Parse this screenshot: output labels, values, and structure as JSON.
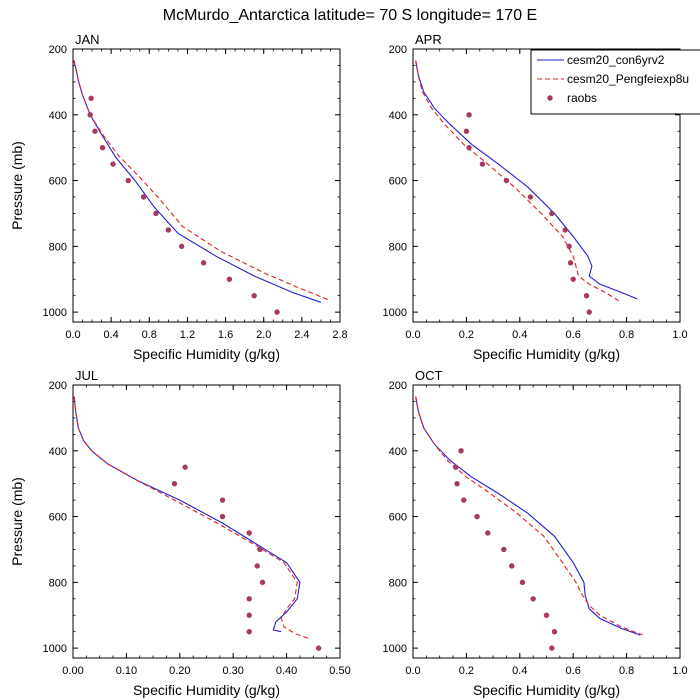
{
  "page_title": "McMurdo_Antarctica  latitude= 70 S longitude= 170 E",
  "legend": {
    "entries": [
      {
        "label": "cesm20_con6yrv2",
        "color": "#1f1fd6",
        "style": "solid"
      },
      {
        "label": "cesm20_Pengfeiexp8u",
        "color": "#e02020",
        "style": "dashed"
      },
      {
        "label": "raobs",
        "color": "#a83a62",
        "style": "marker"
      }
    ]
  },
  "chart_data": [
    {
      "type": "line",
      "title": "JAN",
      "xlabel": "Specific Humidity (g/kg)",
      "ylabel": "Pressure (mb)",
      "xlim": [
        0,
        2.8
      ],
      "ylim": [
        1030,
        200
      ],
      "xticks": [
        "0.0",
        "0.4",
        "0.8",
        "1.2",
        "1.6",
        "2.0",
        "2.4",
        "2.8"
      ],
      "yticks": [
        "200",
        "400",
        "600",
        "800",
        "1000"
      ],
      "series": [
        {
          "name": "cesm20_con6yrv2",
          "color": "#1f1fd6",
          "style": "solid",
          "x": [
            0.01,
            0.03,
            0.06,
            0.1,
            0.18,
            0.3,
            0.45,
            0.65,
            0.85,
            1.1,
            1.5,
            1.9,
            2.3,
            2.6
          ],
          "y": [
            235,
            260,
            300,
            340,
            400,
            460,
            530,
            600,
            680,
            760,
            830,
            890,
            940,
            970
          ]
        },
        {
          "name": "cesm20_Pengfeiexp8u",
          "color": "#e02020",
          "style": "dashed",
          "x": [
            0.01,
            0.03,
            0.06,
            0.1,
            0.18,
            0.31,
            0.48,
            0.7,
            0.92,
            1.15,
            1.55,
            2.0,
            2.4,
            2.7
          ],
          "y": [
            235,
            260,
            300,
            340,
            400,
            460,
            525,
            590,
            660,
            740,
            815,
            880,
            930,
            965
          ]
        },
        {
          "name": "raobs",
          "color": "#a83a62",
          "style": "marker",
          "x": [
            0.19,
            0.18,
            0.23,
            0.31,
            0.42,
            0.58,
            0.74,
            0.87,
            1.0,
            1.14,
            1.37,
            1.64,
            1.9,
            2.14
          ],
          "y": [
            350,
            400,
            450,
            500,
            550,
            600,
            650,
            700,
            750,
            800,
            850,
            900,
            950,
            1000
          ]
        }
      ]
    },
    {
      "type": "line",
      "title": "APR",
      "xlabel": "Specific Humidity (g/kg)",
      "ylabel": "",
      "xlim": [
        0,
        1.0
      ],
      "ylim": [
        1030,
        200
      ],
      "xticks": [
        "0.0",
        "0.2",
        "0.4",
        "0.6",
        "0.8",
        "1.0"
      ],
      "yticks": [
        "200",
        "400",
        "600",
        "800",
        "1000"
      ],
      "series": [
        {
          "name": "cesm20_con6yrv2",
          "color": "#1f1fd6",
          "style": "solid",
          "x": [
            0.01,
            0.02,
            0.04,
            0.08,
            0.14,
            0.22,
            0.32,
            0.43,
            0.53,
            0.6,
            0.655,
            0.67,
            0.66,
            0.7,
            0.78,
            0.84
          ],
          "y": [
            235,
            280,
            330,
            380,
            430,
            490,
            550,
            620,
            700,
            770,
            830,
            860,
            890,
            915,
            940,
            960
          ]
        },
        {
          "name": "cesm20_Pengfeiexp8u",
          "color": "#e02020",
          "style": "dashed",
          "x": [
            0.01,
            0.02,
            0.035,
            0.07,
            0.12,
            0.19,
            0.28,
            0.38,
            0.48,
            0.56,
            0.6,
            0.61,
            0.62,
            0.66,
            0.72,
            0.77
          ],
          "y": [
            235,
            280,
            330,
            380,
            430,
            490,
            550,
            620,
            700,
            770,
            830,
            860,
            890,
            915,
            940,
            965
          ]
        },
        {
          "name": "raobs",
          "color": "#a83a62",
          "style": "marker",
          "x": [
            0.21,
            0.2,
            0.21,
            0.26,
            0.35,
            0.44,
            0.52,
            0.57,
            0.585,
            0.59,
            0.6,
            0.65,
            0.66
          ],
          "y": [
            400,
            450,
            500,
            550,
            600,
            650,
            700,
            750,
            800,
            850,
            900,
            950,
            1000
          ]
        }
      ]
    },
    {
      "type": "line",
      "title": "JUL",
      "xlabel": "Specific Humidity (g/kg)",
      "ylabel": "Pressure (mb)",
      "xlim": [
        0,
        0.5
      ],
      "ylim": [
        1030,
        200
      ],
      "xticks": [
        "0.00",
        "0.10",
        "0.20",
        "0.30",
        "0.40",
        "0.50"
      ],
      "yticks": [
        "200",
        "400",
        "600",
        "800",
        "1000"
      ],
      "series": [
        {
          "name": "cesm20_con6yrv2",
          "color": "#1f1fd6",
          "style": "solid",
          "x": [
            0.002,
            0.005,
            0.01,
            0.02,
            0.035,
            0.065,
            0.12,
            0.2,
            0.28,
            0.35,
            0.4,
            0.425,
            0.42,
            0.4,
            0.38,
            0.375,
            0.39
          ],
          "y": [
            235,
            280,
            330,
            370,
            400,
            440,
            490,
            550,
            620,
            690,
            740,
            800,
            850,
            890,
            920,
            945,
            950
          ]
        },
        {
          "name": "cesm20_Pengfeiexp8u",
          "color": "#e02020",
          "style": "dashed",
          "x": [
            0.002,
            0.005,
            0.01,
            0.02,
            0.035,
            0.065,
            0.12,
            0.19,
            0.27,
            0.345,
            0.395,
            0.42,
            0.415,
            0.4,
            0.39,
            0.395,
            0.415,
            0.44
          ],
          "y": [
            235,
            280,
            330,
            370,
            400,
            440,
            490,
            550,
            620,
            690,
            740,
            800,
            850,
            880,
            910,
            935,
            955,
            970
          ]
        },
        {
          "name": "raobs",
          "color": "#a83a62",
          "style": "marker",
          "x": [
            0.21,
            0.19,
            0.28,
            0.28,
            0.33,
            0.35,
            0.345,
            0.355,
            0.33,
            0.33,
            0.33,
            0.46
          ],
          "y": [
            450,
            500,
            550,
            600,
            650,
            700,
            750,
            800,
            850,
            900,
            950,
            1000
          ]
        }
      ]
    },
    {
      "type": "line",
      "title": "OCT",
      "xlabel": "Specific Humidity (g/kg)",
      "ylabel": "",
      "xlim": [
        0,
        1.0
      ],
      "ylim": [
        1030,
        200
      ],
      "xticks": [
        "0.0",
        "0.2",
        "0.4",
        "0.6",
        "0.8",
        "1.0"
      ],
      "yticks": [
        "200",
        "400",
        "600",
        "800",
        "1000"
      ],
      "series": [
        {
          "name": "cesm20_con6yrv2",
          "color": "#1f1fd6",
          "style": "solid",
          "x": [
            0.01,
            0.02,
            0.04,
            0.08,
            0.14,
            0.22,
            0.32,
            0.43,
            0.53,
            0.6,
            0.64,
            0.645,
            0.66,
            0.7,
            0.78,
            0.85
          ],
          "y": [
            235,
            280,
            330,
            380,
            430,
            480,
            530,
            590,
            660,
            740,
            800,
            840,
            880,
            910,
            940,
            960
          ]
        },
        {
          "name": "cesm20_Pengfeiexp8u",
          "color": "#e02020",
          "style": "dashed",
          "x": [
            0.01,
            0.02,
            0.04,
            0.08,
            0.13,
            0.2,
            0.29,
            0.39,
            0.49,
            0.56,
            0.61,
            0.635,
            0.66,
            0.7,
            0.78,
            0.86
          ],
          "y": [
            235,
            280,
            330,
            380,
            430,
            480,
            530,
            590,
            660,
            740,
            800,
            840,
            870,
            900,
            935,
            960
          ]
        },
        {
          "name": "raobs",
          "color": "#a83a62",
          "style": "marker",
          "x": [
            0.18,
            0.16,
            0.165,
            0.19,
            0.24,
            0.28,
            0.34,
            0.37,
            0.41,
            0.45,
            0.5,
            0.53,
            0.52
          ],
          "y": [
            400,
            450,
            500,
            550,
            600,
            650,
            700,
            750,
            800,
            850,
            900,
            950,
            1000
          ]
        }
      ]
    }
  ]
}
